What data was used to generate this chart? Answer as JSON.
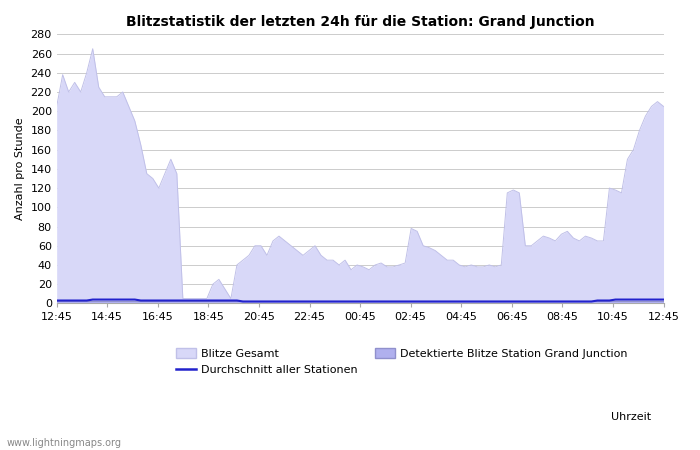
{
  "title": "Blitzstatistik der letzten 24h für die Station: Grand Junction",
  "ylabel": "Anzahl pro Stunde",
  "xlabel": "Uhrzeit",
  "watermark": "www.lightningmaps.org",
  "bg_color": "#ffffff",
  "plot_bg_color": "#ffffff",
  "grid_color": "#cccccc",
  "tick_labels": [
    "12:45",
    "14:45",
    "16:45",
    "18:45",
    "20:45",
    "22:45",
    "00:45",
    "02:45",
    "04:45",
    "06:45",
    "08:45",
    "10:45",
    "12:45"
  ],
  "ylim": [
    0,
    280
  ],
  "yticks": [
    0,
    20,
    40,
    60,
    80,
    100,
    120,
    140,
    160,
    180,
    200,
    220,
    240,
    260,
    280
  ],
  "color_gesamt_fill": "#d8d8f8",
  "color_gesamt_edge": "#c0c0e8",
  "color_station_fill": "#b0b0ee",
  "color_station_edge": "#9090cc",
  "color_avg_line": "#2222cc",
  "legend_items": [
    "Blitze Gesamt",
    "Durchschnitt aller Stationen",
    "Detektierte Blitze Station Grand Junction"
  ],
  "gesamt_values": [
    205,
    238,
    220,
    230,
    220,
    240,
    265,
    225,
    215,
    215,
    215,
    220,
    205,
    190,
    165,
    135,
    130,
    120,
    135,
    150,
    135,
    5,
    5,
    5,
    5,
    5,
    20,
    25,
    15,
    5,
    40,
    45,
    50,
    60,
    60,
    50,
    65,
    70,
    65,
    60,
    55,
    50,
    55,
    60,
    50,
    45,
    45,
    40,
    45,
    35,
    40,
    38,
    35,
    40,
    42,
    38,
    38,
    40,
    42,
    78,
    75,
    60,
    58,
    55,
    50,
    45,
    45,
    40,
    38,
    40,
    38,
    38,
    40,
    38,
    40,
    115,
    118,
    115,
    60,
    60,
    65,
    70,
    68,
    65,
    72,
    75,
    68,
    65,
    70,
    68,
    65,
    65,
    120,
    118,
    115,
    150,
    160,
    180,
    195,
    205,
    210,
    205
  ],
  "station_values": [
    2,
    2,
    2,
    2,
    2,
    2,
    2,
    2,
    2,
    2,
    2,
    2,
    2,
    2,
    2,
    2,
    2,
    2,
    2,
    2,
    2,
    2,
    2,
    2,
    2,
    2,
    2,
    2,
    2,
    2,
    2,
    2,
    2,
    2,
    2,
    2,
    2,
    2,
    2,
    2,
    2,
    2,
    2,
    2,
    2,
    2,
    2,
    2,
    2,
    2,
    2,
    2,
    2,
    2,
    2,
    2,
    2,
    2,
    2,
    2,
    2,
    2,
    2,
    2,
    2,
    2,
    2,
    2,
    2,
    2,
    2,
    2,
    2,
    2,
    2,
    2,
    2,
    2,
    2,
    2,
    2,
    2,
    2,
    2,
    2,
    2,
    2,
    2,
    2,
    2,
    2,
    2,
    2,
    2,
    2,
    2,
    2,
    2,
    2,
    2,
    2,
    2
  ],
  "avg_values": [
    3,
    3,
    3,
    3,
    3,
    3,
    4,
    4,
    4,
    4,
    4,
    4,
    4,
    4,
    3,
    3,
    3,
    3,
    3,
    3,
    3,
    3,
    3,
    3,
    3,
    3,
    3,
    3,
    3,
    3,
    3,
    2,
    2,
    2,
    2,
    2,
    2,
    2,
    2,
    2,
    2,
    2,
    2,
    2,
    2,
    2,
    2,
    2,
    2,
    2,
    2,
    2,
    2,
    2,
    2,
    2,
    2,
    2,
    2,
    2,
    2,
    2,
    2,
    2,
    2,
    2,
    2,
    2,
    2,
    2,
    2,
    2,
    2,
    2,
    2,
    2,
    2,
    2,
    2,
    2,
    2,
    2,
    2,
    2,
    2,
    2,
    2,
    2,
    2,
    2,
    3,
    3,
    3,
    4,
    4,
    4,
    4,
    4,
    4,
    4,
    4,
    4
  ]
}
